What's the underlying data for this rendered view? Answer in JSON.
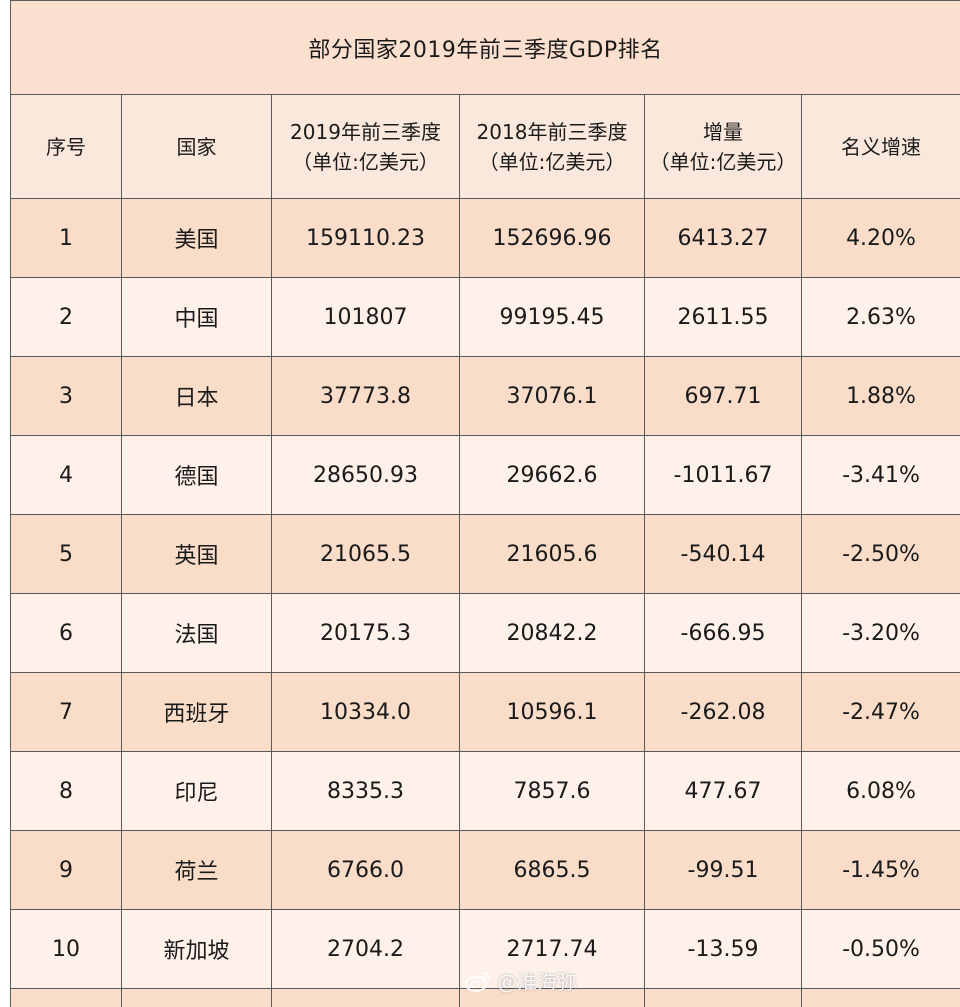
{
  "table": {
    "title": "部分国家2019年前三季度GDP排名",
    "headers": {
      "rank": "序号",
      "country": "国家",
      "gdp2019": [
        "2019年前三季度",
        "（单位:亿美元）"
      ],
      "gdp2018": [
        "2018年前三季度",
        "（单位:亿美元）"
      ],
      "increase": [
        "增量",
        "（单位:亿美元）"
      ],
      "growth": "名义增速"
    },
    "rows": [
      {
        "rank": "1",
        "country": "美国",
        "gdp2019": "159110.23",
        "gdp2018": "152696.96",
        "increase": "6413.27",
        "growth": "4.20%"
      },
      {
        "rank": "2",
        "country": "中国",
        "gdp2019": "101807",
        "gdp2018": "99195.45",
        "increase": "2611.55",
        "growth": "2.63%"
      },
      {
        "rank": "3",
        "country": "日本",
        "gdp2019": "37773.8",
        "gdp2018": "37076.1",
        "increase": "697.71",
        "growth": "1.88%"
      },
      {
        "rank": "4",
        "country": "德国",
        "gdp2019": "28650.93",
        "gdp2018": "29662.6",
        "increase": "-1011.67",
        "growth": "-3.41%"
      },
      {
        "rank": "5",
        "country": "英国",
        "gdp2019": "21065.5",
        "gdp2018": "21605.6",
        "increase": "-540.14",
        "growth": "-2.50%"
      },
      {
        "rank": "6",
        "country": "法国",
        "gdp2019": "20175.3",
        "gdp2018": "20842.2",
        "increase": "-666.95",
        "growth": "-3.20%"
      },
      {
        "rank": "7",
        "country": "西班牙",
        "gdp2019": "10334.0",
        "gdp2018": "10596.1",
        "increase": "-262.08",
        "growth": "-2.47%"
      },
      {
        "rank": "8",
        "country": "印尼",
        "gdp2019": "8335.3",
        "gdp2018": "7857.6",
        "increase": "477.67",
        "growth": "6.08%"
      },
      {
        "rank": "9",
        "country": "荷兰",
        "gdp2019": "6766.0",
        "gdp2018": "6865.5",
        "increase": "-99.51",
        "growth": "-1.45%"
      },
      {
        "rank": "10",
        "country": "新加坡",
        "gdp2019": "2704.2",
        "gdp2018": "2717.74",
        "increase": "-13.59",
        "growth": "-0.50%"
      }
    ]
  },
  "watermark": {
    "text": "@淮海弥",
    "icon": "weibo-icon"
  },
  "colors": {
    "title_bg": "#fbe0cf",
    "header_bg": "#fbe8dc",
    "odd_row_bg": "#f9ddc9",
    "even_row_bg": "#fdf1ea",
    "border": "#5a5a5a"
  }
}
